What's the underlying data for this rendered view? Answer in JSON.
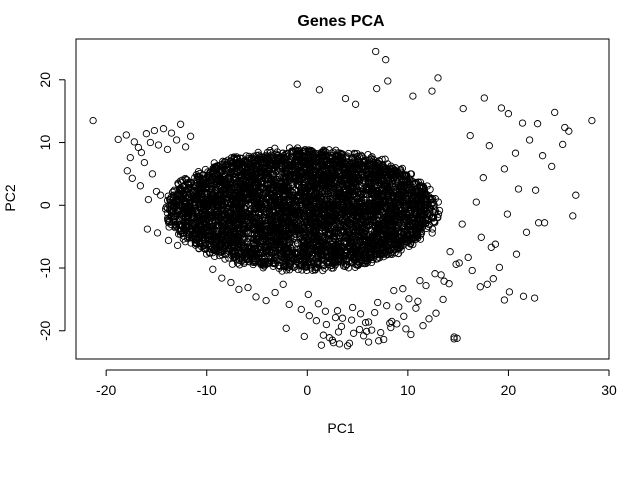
{
  "chart_data": {
    "type": "scatter",
    "title": "Genes PCA",
    "xlabel": "PC1",
    "ylabel": "PC2",
    "xlim": [
      -23,
      30
    ],
    "ylim": [
      -24.5,
      26.5
    ],
    "x_ticks": [
      -20,
      -10,
      0,
      10,
      20,
      30
    ],
    "y_ticks": [
      -20,
      -10,
      0,
      10,
      20
    ],
    "x_tick_labels": [
      "-20",
      "-10",
      "0",
      "10",
      "20",
      "30"
    ],
    "y_tick_labels": [
      "-20",
      "-10",
      "0",
      "10",
      "20"
    ],
    "grid": false,
    "marker": "open-circle",
    "marker_color": "#000000",
    "series": [
      {
        "dense_core": {
          "x": [
            -12,
            11
          ],
          "y": [
            -9,
            7.5
          ]
        },
        "x": [
          -21.3,
          -18.8,
          -18.0,
          -17.6,
          -17.2,
          -16.8,
          -16.5,
          -16.0,
          -15.6,
          -15.2,
          -14.8,
          -14.3,
          -13.9,
          -13.5,
          -13.0,
          -12.6,
          -12.1,
          -11.6,
          -17.9,
          -17.4,
          -16.6,
          -15.8,
          -15.0,
          -14.1,
          -13.2,
          -12.4,
          -16.2,
          -15.4,
          -14.6,
          -13.7,
          -12.8,
          -15.9,
          -14.9,
          -13.8,
          -12.9,
          -1.0,
          1.2,
          3.8,
          4.8,
          6.8,
          6.9,
          7.8,
          8.0,
          13.0,
          10.5,
          12.4,
          15.5,
          17.6,
          19.3,
          20.0,
          21.4,
          22.9,
          24.6,
          25.6,
          26.0,
          28.3,
          16.2,
          18.1,
          20.7,
          22.1,
          23.4,
          24.3,
          17.5,
          19.6,
          21.0,
          25.4,
          16.8,
          19.9,
          22.7,
          15.4,
          17.3,
          18.7,
          21.8,
          23.6,
          14.2,
          26.7,
          26.4,
          23.0,
          20.8,
          19.1,
          18.5,
          20.1,
          21.5,
          17.9,
          16.4,
          15.1,
          18.3,
          19.6,
          22.6,
          13.6,
          14.8,
          16.0,
          17.2,
          -8.5,
          -6.8,
          -5.1,
          -3.2,
          -1.8,
          0.1,
          1.8,
          3.5,
          5.3,
          7.0,
          8.6,
          10.1,
          11.8,
          13.3,
          -9.4,
          -7.6,
          -5.9,
          -4.1,
          -2.4,
          -0.6,
          1.1,
          2.8,
          4.5,
          6.1,
          7.9,
          9.5,
          11.2,
          12.7,
          14.1,
          -2.1,
          -0.3,
          0.9,
          2.2,
          3.4,
          4.6,
          5.8,
          7.1,
          8.3,
          9.6,
          10.8,
          12.1,
          13.5,
          14.9,
          1.4,
          2.6,
          3.1,
          4.2,
          5.6,
          6.4,
          7.6,
          8.9,
          10.3,
          11.5,
          12.8,
          14.6,
          0.2,
          1.9,
          3.0,
          4.4,
          5.9,
          6.7,
          8.2,
          9.1,
          11.0,
          3.2,
          6.1,
          9.8,
          14.6,
          1.6,
          4.0,
          7.3,
          2.5,
          5.2,
          8.4
        ],
        "y": [
          13.5,
          10.5,
          11.2,
          7.6,
          10.1,
          9.2,
          8.4,
          11.4,
          10.0,
          11.9,
          9.6,
          12.2,
          8.9,
          11.5,
          10.4,
          12.9,
          9.3,
          11.0,
          5.5,
          4.3,
          3.1,
          0.9,
          2.2,
          -0.6,
          -1.8,
          -3.2,
          6.8,
          5.0,
          1.6,
          -2.5,
          -4.6,
          -3.8,
          -4.4,
          -5.6,
          -6.4,
          19.3,
          18.4,
          17.0,
          16.1,
          24.5,
          18.6,
          23.2,
          19.8,
          20.3,
          17.4,
          18.2,
          15.4,
          17.1,
          15.5,
          14.6,
          13.1,
          13.0,
          14.8,
          12.4,
          11.8,
          13.5,
          11.1,
          9.5,
          8.3,
          10.4,
          7.9,
          6.2,
          4.4,
          5.8,
          2.6,
          9.7,
          0.5,
          -1.4,
          2.4,
          -3.0,
          -5.1,
          -6.2,
          -4.3,
          -2.8,
          -7.4,
          1.6,
          -1.7,
          -2.8,
          -7.8,
          -9.9,
          -11.7,
          -13.8,
          -14.5,
          -12.6,
          -10.4,
          -9.2,
          -6.7,
          -15.1,
          -14.8,
          -12.1,
          -9.4,
          -8.3,
          -13.0,
          -11.6,
          -13.4,
          -14.6,
          -13.9,
          -15.8,
          -14.2,
          -16.9,
          -18.0,
          -17.3,
          -15.5,
          -13.6,
          -14.9,
          -12.8,
          -11.1,
          -10.2,
          -12.3,
          -13.1,
          -15.2,
          -12.6,
          -16.6,
          -15.7,
          -17.9,
          -16.3,
          -18.6,
          -16.0,
          -13.3,
          -12.0,
          -10.9,
          -12.5,
          -19.6,
          -20.9,
          -18.4,
          -21.1,
          -19.3,
          -20.4,
          -18.7,
          -21.6,
          -19.5,
          -17.7,
          -16.4,
          -18.1,
          -15.0,
          -21.2,
          -22.3,
          -21.9,
          -20.2,
          -22.0,
          -20.8,
          -19.9,
          -21.4,
          -18.9,
          -20.6,
          -19.2,
          -17.2,
          -21.0,
          -17.6,
          -19.0,
          -16.8,
          -18.3,
          -20.1,
          -17.1,
          -18.8,
          -16.2,
          -15.3,
          -22.1,
          -21.8,
          -19.7,
          -21.3,
          -20.7,
          -22.4,
          -20.3,
          -21.5,
          -19.8,
          -18.5
        ]
      }
    ]
  }
}
